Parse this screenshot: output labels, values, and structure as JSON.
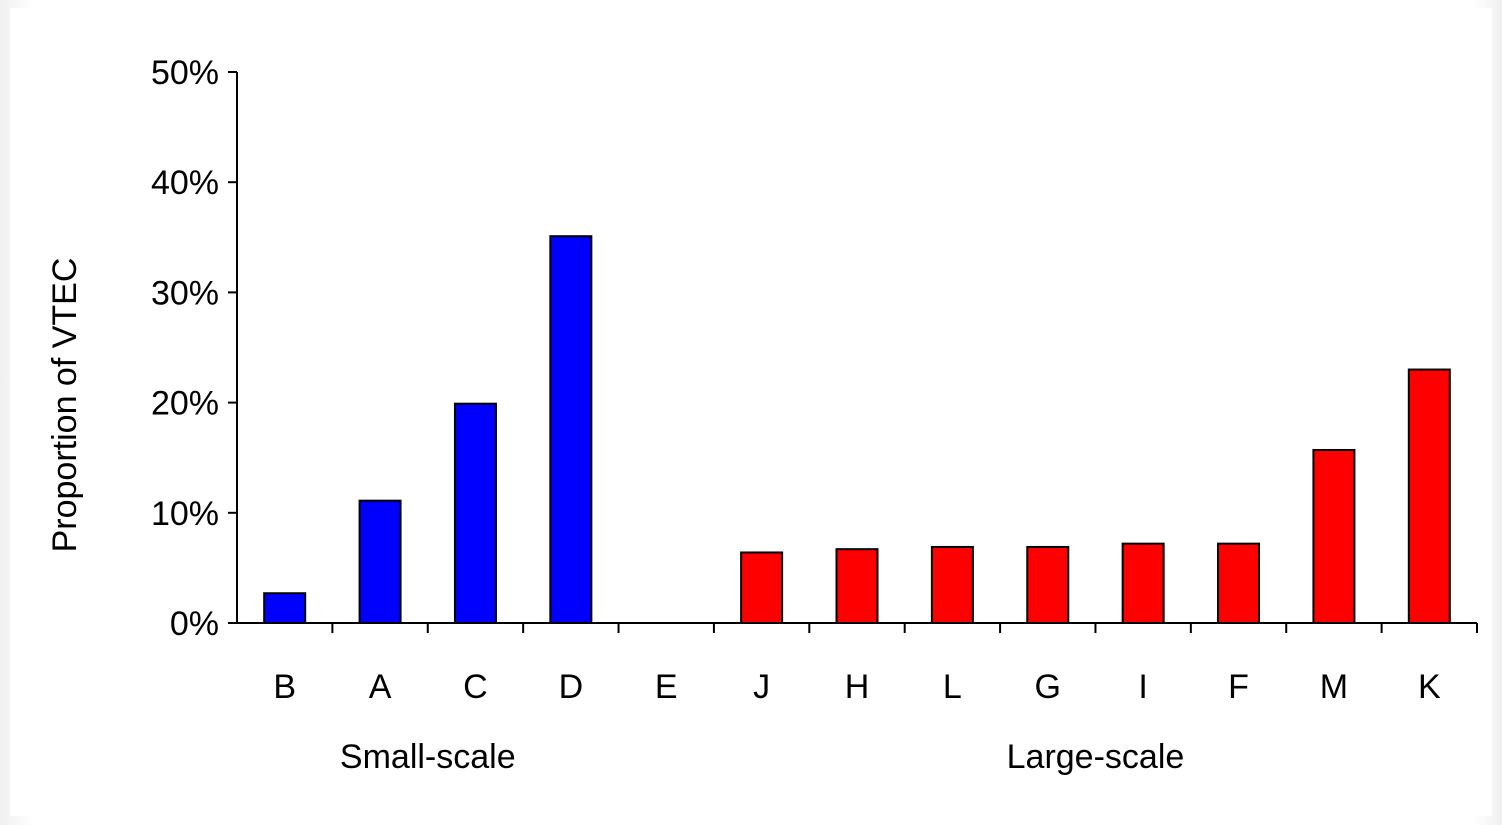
{
  "chart_data": {
    "type": "bar",
    "ylabel": "Proportion of VTEC",
    "xlabel": "",
    "ylim": [
      0,
      50
    ],
    "yticks": [
      0,
      10,
      20,
      30,
      40,
      50
    ],
    "ytick_labels": [
      "0%",
      "10%",
      "20%",
      "30%",
      "40%",
      "50%"
    ],
    "categories": [
      "B",
      "A",
      "C",
      "D",
      "E",
      "J",
      "H",
      "L",
      "G",
      "I",
      "F",
      "M",
      "K"
    ],
    "values": [
      2.7,
      11.1,
      19.9,
      35.1,
      0,
      6.4,
      6.7,
      6.9,
      6.9,
      7.2,
      7.2,
      15.7,
      23.0
    ],
    "groups": [
      {
        "name": "Small-scale",
        "categories": [
          "B",
          "A",
          "C",
          "D"
        ],
        "color": "#0000ff"
      },
      {
        "name": "Large-scale",
        "categories": [
          "J",
          "H",
          "L",
          "G",
          "I",
          "F",
          "M",
          "K"
        ],
        "color": "#ff0000"
      }
    ],
    "grid": false,
    "legend": "none"
  }
}
